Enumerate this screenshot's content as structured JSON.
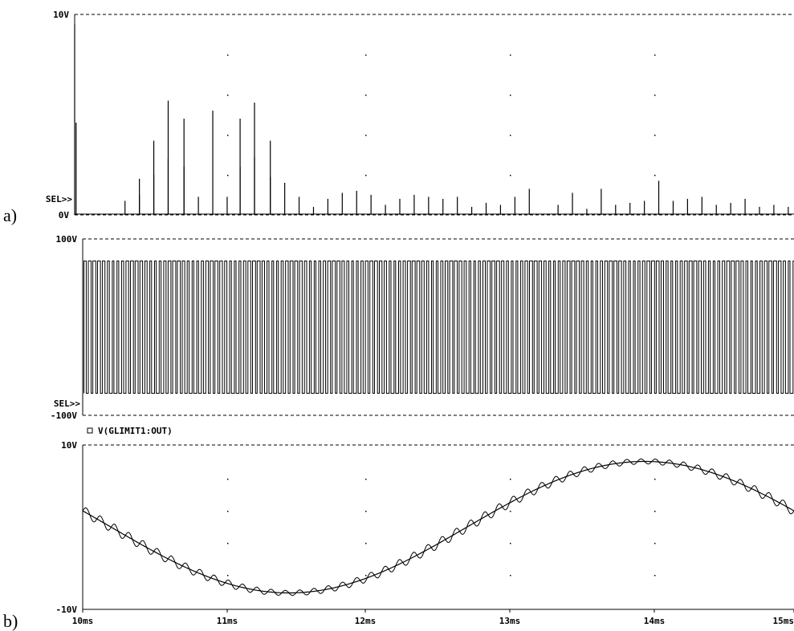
{
  "chart_data": [
    {
      "type": "line",
      "panel_label": "a)",
      "sel_marker": "SEL>>",
      "ylim": [
        0,
        10
      ],
      "y_ticks": [
        "10V",
        "0V"
      ],
      "xlim": [
        10,
        15
      ],
      "series": [
        {
          "peaks": [
            {
              "t": 10.0,
              "v": 9.5
            },
            {
              "t": 10.01,
              "v": 4.6
            },
            {
              "t": 10.35,
              "v": 0.7
            },
            {
              "t": 10.45,
              "v": 1.0
            },
            {
              "t": 10.45,
              "v": 1.8
            },
            {
              "t": 10.55,
              "v": 2.0
            },
            {
              "t": 10.55,
              "v": 3.7
            },
            {
              "t": 10.65,
              "v": 5.7
            },
            {
              "t": 10.65,
              "v": 2.8
            },
            {
              "t": 10.76,
              "v": 4.8
            },
            {
              "t": 10.76,
              "v": 2.4
            },
            {
              "t": 10.86,
              "v": 0.9
            },
            {
              "t": 10.96,
              "v": 5.2
            },
            {
              "t": 11.06,
              "v": 0.9
            },
            {
              "t": 11.15,
              "v": 4.8
            },
            {
              "t": 11.15,
              "v": 2.4
            },
            {
              "t": 11.25,
              "v": 5.6
            },
            {
              "t": 11.25,
              "v": 2.9
            },
            {
              "t": 11.36,
              "v": 3.7
            },
            {
              "t": 11.36,
              "v": 1.9
            },
            {
              "t": 11.46,
              "v": 1.6
            },
            {
              "t": 11.56,
              "v": 0.9
            },
            {
              "t": 11.66,
              "v": 0.4
            },
            {
              "t": 11.76,
              "v": 0.8
            },
            {
              "t": 11.86,
              "v": 1.1
            },
            {
              "t": 11.96,
              "v": 1.2
            },
            {
              "t": 12.06,
              "v": 1.0
            },
            {
              "t": 12.16,
              "v": 0.5
            },
            {
              "t": 12.26,
              "v": 0.8
            },
            {
              "t": 12.36,
              "v": 1.0
            },
            {
              "t": 12.46,
              "v": 0.9
            },
            {
              "t": 12.56,
              "v": 0.8
            },
            {
              "t": 12.66,
              "v": 0.9
            },
            {
              "t": 12.76,
              "v": 0.4
            },
            {
              "t": 12.86,
              "v": 0.6
            },
            {
              "t": 12.96,
              "v": 0.5
            },
            {
              "t": 13.06,
              "v": 0.9
            },
            {
              "t": 13.16,
              "v": 1.3
            },
            {
              "t": 13.36,
              "v": 0.5
            },
            {
              "t": 13.46,
              "v": 1.1
            },
            {
              "t": 13.56,
              "v": 0.3
            },
            {
              "t": 13.66,
              "v": 1.3
            },
            {
              "t": 13.76,
              "v": 0.5
            },
            {
              "t": 13.86,
              "v": 0.6
            },
            {
              "t": 13.96,
              "v": 0.7
            },
            {
              "t": 14.06,
              "v": 1.7
            },
            {
              "t": 14.16,
              "v": 0.7
            },
            {
              "t": 14.26,
              "v": 0.8
            },
            {
              "t": 14.36,
              "v": 0.9
            },
            {
              "t": 14.46,
              "v": 0.5
            },
            {
              "t": 14.56,
              "v": 0.6
            },
            {
              "t": 14.66,
              "v": 0.8
            },
            {
              "t": 14.76,
              "v": 0.4
            },
            {
              "t": 14.86,
              "v": 0.5
            },
            {
              "t": 14.96,
              "v": 0.4
            }
          ]
        }
      ]
    },
    {
      "type": "line",
      "sel_marker": "SEL>>",
      "ylim": [
        -100,
        100
      ],
      "y_ticks": [
        "100V",
        "-100V"
      ],
      "xlim": [
        10,
        15
      ],
      "series": [
        {
          "waveform": "square",
          "high": 75,
          "low": -75,
          "period_ms": 0.033
        }
      ]
    },
    {
      "type": "line",
      "panel_label": "b)",
      "legend": "V(GLIMIT1:OUT)",
      "legend_marker": "square",
      "ylim": [
        -10,
        10
      ],
      "y_ticks": [
        "10V",
        "-10V"
      ],
      "xlim": [
        10,
        15
      ],
      "x_ticks": [
        "10ms",
        "11ms",
        "12ms",
        "13ms",
        "14ms",
        "15ms"
      ],
      "series": [
        {
          "waveform": "sine",
          "amplitude": 8.0,
          "period_ms": 5.0,
          "phase_ms_at_start": -2.7,
          "ripple_amplitude": 0.6,
          "ripple_period_ms": 0.1
        }
      ]
    }
  ]
}
